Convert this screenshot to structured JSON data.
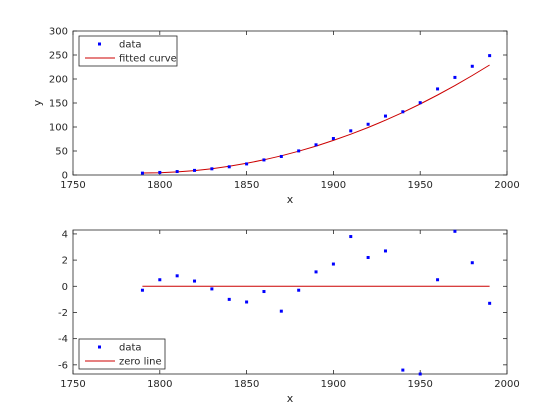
{
  "colors": {
    "data": "#0000ff",
    "curve": "#cc0000",
    "axis": "#262626",
    "background": "#ffffff"
  },
  "chart_data": [
    {
      "type": "scatter",
      "xlabel": "x",
      "ylabel": "y",
      "xlim": [
        1750,
        2000
      ],
      "ylim": [
        0,
        300
      ],
      "xticks": [
        1750,
        1800,
        1850,
        1900,
        1950,
        2000
      ],
      "yticks": [
        0,
        50,
        100,
        150,
        200,
        250,
        300
      ],
      "legend": {
        "placement": "top-left",
        "data_label": "data",
        "line_label": "fitted curve"
      },
      "series": [
        {
          "name": "data",
          "x": [
            1790,
            1800,
            1810,
            1820,
            1830,
            1840,
            1850,
            1860,
            1870,
            1880,
            1890,
            1900,
            1910,
            1920,
            1930,
            1940,
            1950,
            1960,
            1970,
            1980,
            1990
          ],
          "y": [
            3.9,
            5.3,
            7.2,
            9.6,
            12.9,
            17.1,
            23.1,
            31.4,
            38.6,
            50.2,
            62.9,
            76.0,
            92.0,
            105.7,
            122.8,
            131.7,
            150.7,
            179.3,
            203.3,
            226.5,
            248.7
          ]
        },
        {
          "name": "fitted curve",
          "x": [
            1790,
            1800,
            1810,
            1820,
            1830,
            1840,
            1850,
            1860,
            1870,
            1880,
            1890,
            1900,
            1910,
            1920,
            1930,
            1940,
            1950,
            1960,
            1970,
            1980,
            1990
          ],
          "y": [
            4.2,
            4.8,
            6.4,
            9.2,
            13.1,
            18.1,
            24.3,
            31.6,
            40.0,
            49.5,
            60.2,
            72.0,
            84.9,
            99.0,
            114.2,
            130.5,
            148.0,
            166.6,
            186.3,
            207.2,
            229.2
          ]
        }
      ]
    },
    {
      "type": "scatter",
      "xlabel": "x",
      "ylabel": "",
      "xlim": [
        1750,
        2000
      ],
      "ylim": [
        -6.7,
        4.3
      ],
      "xticks": [
        1750,
        1800,
        1850,
        1900,
        1950,
        2000
      ],
      "yticks": [
        -6,
        -4,
        -2,
        0,
        2,
        4
      ],
      "legend": {
        "placement": "bottom-left",
        "data_label": "data",
        "line_label": "zero line"
      },
      "series": [
        {
          "name": "data",
          "x": [
            1790,
            1800,
            1810,
            1820,
            1830,
            1840,
            1850,
            1860,
            1870,
            1880,
            1890,
            1900,
            1910,
            1920,
            1930,
            1940,
            1950,
            1960,
            1970,
            1980,
            1990
          ],
          "y": [
            -0.3,
            0.5,
            0.8,
            0.4,
            -0.2,
            -1.0,
            -1.2,
            -0.4,
            -1.9,
            -0.3,
            1.1,
            1.7,
            3.8,
            2.2,
            2.7,
            -6.4,
            -6.7,
            0.5,
            4.2,
            1.8,
            -1.3
          ]
        },
        {
          "name": "zero line",
          "x": [
            1790,
            1990
          ],
          "y": [
            0,
            0
          ]
        }
      ]
    }
  ]
}
